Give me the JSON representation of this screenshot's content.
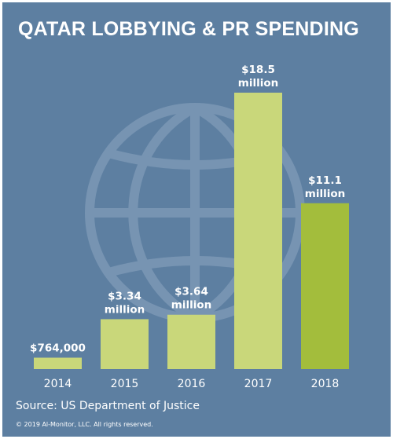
{
  "chart_data": {
    "type": "bar",
    "title": "QATAR LOBBYING & PR SPENDING",
    "categories": [
      "2014",
      "2015",
      "2016",
      "2017",
      "2018"
    ],
    "values": [
      0.764,
      3.34,
      3.64,
      18.5,
      11.1
    ],
    "value_unit": "million USD",
    "data_labels": [
      [
        "$764,000"
      ],
      [
        "$3.34",
        "million"
      ],
      [
        "$3.64",
        "million"
      ],
      [
        "$18.5",
        "million"
      ],
      [
        "$11.1",
        "million"
      ]
    ],
    "ylim": [
      0,
      18.5
    ],
    "grid": false,
    "bar_colors": [
      "#c9d77a",
      "#c9d77a",
      "#c9d77a",
      "#c9d77a",
      "#a3bd3c"
    ],
    "background_color": "#5d7fa1",
    "decoration": "globe-icon"
  },
  "source": "Source: US Department of Justice",
  "copyright": "© 2019 Al-Monitor, LLC. All rights reserved."
}
